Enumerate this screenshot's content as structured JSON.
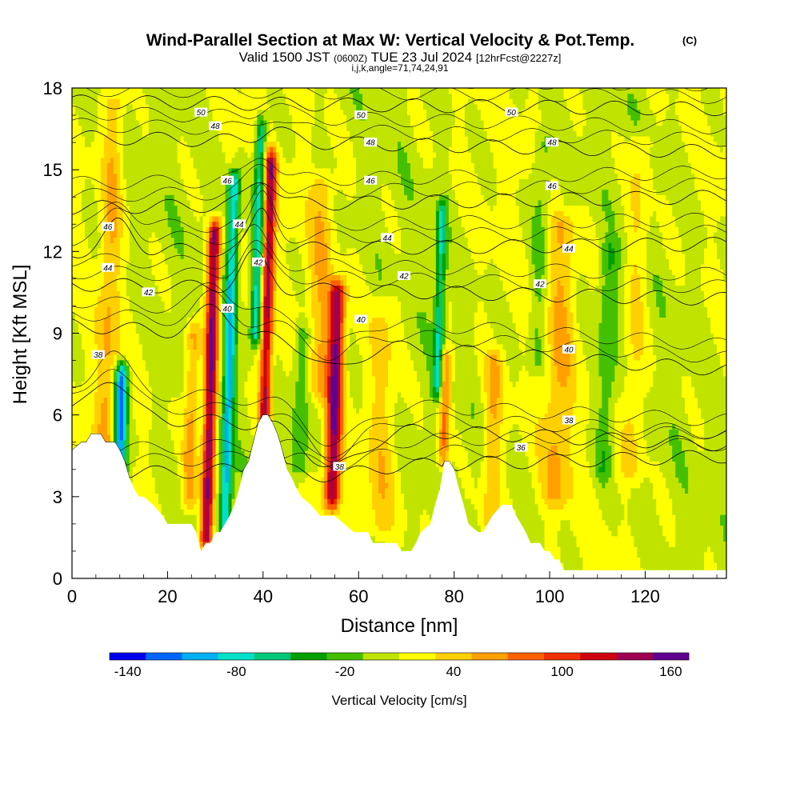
{
  "title": {
    "main": "Wind-Parallel Section at Max W: Vertical Velocity & Pot.Temp.",
    "main_suffix": "(C)",
    "valid_prefix": "Valid 1500 JST",
    "valid_zulu": "(0600Z)",
    "valid_date": "TUE 23 Jul 2024",
    "valid_fcst": "[12hrFcst@2227z]",
    "indices": "i,j,k,angle=71,74,24,91"
  },
  "chart_data": {
    "type": "heatmap",
    "xlabel": "Distance [nm]",
    "ylabel": "Height [Kft MSL]",
    "xlim": [
      0,
      137
    ],
    "ylim": [
      0,
      18
    ],
    "xticks": [
      0,
      20,
      40,
      60,
      80,
      100,
      120
    ],
    "yticks": [
      0,
      3,
      6,
      9,
      12,
      15,
      18
    ],
    "colorbar": {
      "label": "Vertical Velocity [cm/s]",
      "tick_values": [
        -140,
        -80,
        -20,
        40,
        100,
        160
      ],
      "tick_labels": [
        "-140",
        "-80",
        "-20",
        "40",
        "100",
        "160"
      ],
      "levels": [
        -150,
        -130,
        -110,
        -90,
        -70,
        -50,
        -30,
        -10,
        10,
        30,
        50,
        70,
        90,
        110,
        130,
        150,
        170
      ],
      "colors": [
        "#0000ee",
        "#0066ff",
        "#00b0f0",
        "#00e0c8",
        "#00c878",
        "#00a000",
        "#44c000",
        "#c0e400",
        "#ffff00",
        "#ffd000",
        "#ffa000",
        "#ff6000",
        "#f03000",
        "#d00010",
        "#a00050",
        "#600090"
      ]
    },
    "terrain_profile": {
      "x": [
        0,
        2,
        3,
        4,
        5,
        6,
        7,
        8,
        9,
        10,
        11,
        12,
        13,
        14,
        15,
        17,
        19,
        20,
        22,
        24,
        25,
        26,
        27,
        28,
        29,
        30,
        31,
        32,
        33,
        34,
        35,
        36,
        37,
        38,
        39,
        40,
        41,
        42,
        43,
        44,
        45,
        46,
        47,
        48,
        50,
        52,
        55,
        57,
        59,
        60,
        61,
        62,
        63,
        65,
        67,
        68,
        69,
        70,
        71,
        72,
        73,
        75,
        76,
        77,
        78,
        79,
        80,
        81,
        82,
        83,
        85,
        86,
        87,
        88,
        90,
        92,
        93,
        94,
        95,
        96,
        98,
        99,
        100,
        101,
        102,
        103,
        104,
        105,
        110,
        115,
        120,
        125,
        130,
        137
      ],
      "kft": [
        4.7,
        5.0,
        5.0,
        5.3,
        5.3,
        5.3,
        5.0,
        5.0,
        5.0,
        4.7,
        4.3,
        3.7,
        3.3,
        3.0,
        3.0,
        2.7,
        2.3,
        2.0,
        2.0,
        2.0,
        2.0,
        1.7,
        1.0,
        1.3,
        1.3,
        1.7,
        1.7,
        2.0,
        2.3,
        2.7,
        3.3,
        4.0,
        4.3,
        5.0,
        5.7,
        6.0,
        6.0,
        5.7,
        5.3,
        4.7,
        4.0,
        3.7,
        3.3,
        3.0,
        2.7,
        2.3,
        2.3,
        2.0,
        1.7,
        1.7,
        1.7,
        1.7,
        1.3,
        1.3,
        1.3,
        1.3,
        1.0,
        1.0,
        1.0,
        1.3,
        1.7,
        2.0,
        2.7,
        3.3,
        4.3,
        4.3,
        4.0,
        3.3,
        2.7,
        2.0,
        1.7,
        1.7,
        2.0,
        2.3,
        2.7,
        2.7,
        2.3,
        2.0,
        1.7,
        1.3,
        1.3,
        1.0,
        1.0,
        0.7,
        0.7,
        0.3,
        0.3,
        0.3,
        0.3,
        0.3,
        0.3,
        0.3,
        0.3,
        0.3
      ]
    },
    "updraft_cores": [
      {
        "x": 29,
        "k0": 1.5,
        "k1": 12.7,
        "w": 1.3,
        "amp": 150
      },
      {
        "x": 41,
        "k0": 6.0,
        "k1": 15.3,
        "w": 1.2,
        "amp": 125
      },
      {
        "x": 55,
        "k0": 3.0,
        "k1": 10.5,
        "w": 1.6,
        "amp": 135
      },
      {
        "x": 25,
        "k0": 3.0,
        "k1": 9.0,
        "w": 1.5,
        "amp": 55
      },
      {
        "x": 8,
        "k0": 5.0,
        "k1": 17.5,
        "w": 2.2,
        "amp": 40
      },
      {
        "x": 78,
        "k0": 4.5,
        "k1": 8.0,
        "w": 1.2,
        "amp": 70
      },
      {
        "x": 52,
        "k0": 7.0,
        "k1": 14.5,
        "w": 2.5,
        "amp": 35
      },
      {
        "x": 102,
        "k0": 3.0,
        "k1": 13.0,
        "w": 3.0,
        "amp": 38
      },
      {
        "x": 118,
        "k0": 4.0,
        "k1": 16.0,
        "w": 2.5,
        "amp": 30
      },
      {
        "x": 88,
        "k0": 2.0,
        "k1": 8.0,
        "w": 2.0,
        "amp": 40
      },
      {
        "x": 65,
        "k0": 2.0,
        "k1": 10.0,
        "w": 3.0,
        "amp": 30
      }
    ],
    "downdraft_cores": [
      {
        "x": 10,
        "k0": 3.0,
        "k1": 7.5,
        "w": 1.4,
        "amp": -130
      },
      {
        "x": 33,
        "k0": 2.0,
        "k1": 14.5,
        "w": 1.2,
        "amp": -100
      },
      {
        "x": 39,
        "k0": 9.0,
        "k1": 16.5,
        "w": 1.1,
        "amp": -90
      },
      {
        "x": 77,
        "k0": 7.0,
        "k1": 13.5,
        "w": 1.0,
        "amp": -75
      },
      {
        "x": 48,
        "k0": 4.0,
        "k1": 9.0,
        "w": 2.0,
        "amp": -40
      },
      {
        "x": 98,
        "k0": 8.0,
        "k1": 16.0,
        "w": 2.0,
        "amp": -30
      },
      {
        "x": 112,
        "k0": 4.0,
        "k1": 12.0,
        "w": 2.0,
        "amp": -35
      }
    ],
    "contours": [
      {
        "label": "36",
        "base_kft": 3.8,
        "slope": 0.005,
        "dev": [
          [
            -0.3,
            55,
            8
          ]
        ]
      },
      {
        "label": "38",
        "base_kft": 6.0,
        "slope": -0.008,
        "dev": [
          [
            1.5,
            8,
            5
          ],
          [
            -1.5,
            55,
            8
          ]
        ]
      },
      {
        "label": "40",
        "base_kft": 9.3,
        "slope": -0.012,
        "dev": [
          [
            1.0,
            30,
            5
          ],
          [
            -1.0,
            55,
            6
          ]
        ]
      },
      {
        "label": "42",
        "base_kft": 10.8,
        "slope": -0.004,
        "dev": [
          [
            1.2,
            38,
            4
          ]
        ]
      },
      {
        "label": "44",
        "base_kft": 12.0,
        "slope": 0.002,
        "dev": [
          [
            1.0,
            10,
            4
          ],
          [
            1.5,
            40,
            3
          ]
        ]
      },
      {
        "label": "46",
        "base_kft": 13.6,
        "slope": 0.003,
        "dev": [
          [
            1.0,
            40,
            4
          ]
        ]
      },
      {
        "label": "48",
        "base_kft": 16.2,
        "slope": -0.004,
        "dev": [
          [
            0.5,
            42,
            4
          ]
        ]
      },
      {
        "label": "50",
        "base_kft": 17.5,
        "slope": -0.002,
        "dev": []
      }
    ],
    "contour_labels": [
      {
        "text": "50",
        "x": 27,
        "y": 17.1
      },
      {
        "text": "48",
        "x": 30,
        "y": 16.6
      },
      {
        "text": "46",
        "x": 32.5,
        "y": 14.6
      },
      {
        "text": "44",
        "x": 35,
        "y": 13.0
      },
      {
        "text": "42",
        "x": 39,
        "y": 11.6
      },
      {
        "text": "40",
        "x": 32.5,
        "y": 9.9
      },
      {
        "text": "46",
        "x": 7.5,
        "y": 12.9
      },
      {
        "text": "44",
        "x": 7.5,
        "y": 11.4
      },
      {
        "text": "42",
        "x": 16,
        "y": 10.5
      },
      {
        "text": "38",
        "x": 5.5,
        "y": 8.2
      },
      {
        "text": "50",
        "x": 60.5,
        "y": 17.0
      },
      {
        "text": "48",
        "x": 62.5,
        "y": 16.0
      },
      {
        "text": "46",
        "x": 62.5,
        "y": 14.6
      },
      {
        "text": "44",
        "x": 66,
        "y": 12.5
      },
      {
        "text": "42",
        "x": 69.5,
        "y": 11.1
      },
      {
        "text": "40",
        "x": 60.5,
        "y": 9.5
      },
      {
        "text": "50",
        "x": 92,
        "y": 17.1
      },
      {
        "text": "48",
        "x": 100.5,
        "y": 16.0
      },
      {
        "text": "46",
        "x": 100.5,
        "y": 14.4
      },
      {
        "text": "44",
        "x": 104,
        "y": 12.1
      },
      {
        "text": "42",
        "x": 98,
        "y": 10.8
      },
      {
        "text": "40",
        "x": 104,
        "y": 8.4
      },
      {
        "text": "38",
        "x": 104,
        "y": 5.8
      },
      {
        "text": "36",
        "x": 94,
        "y": 4.8
      },
      {
        "text": "38",
        "x": 56,
        "y": 4.1
      }
    ]
  }
}
